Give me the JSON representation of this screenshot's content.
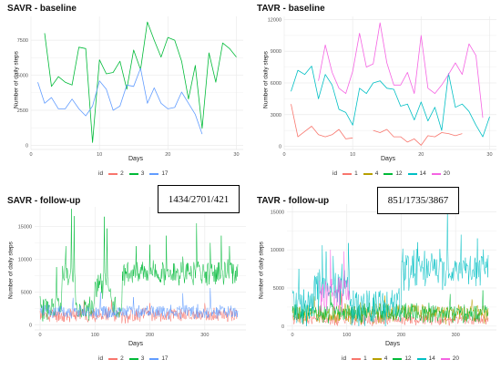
{
  "colors": {
    "red": "#F8766D",
    "green": "#00BA38",
    "blue": "#619CFF",
    "olive": "#B79F00",
    "teal": "#00BFC4",
    "pink": "#F564E3",
    "grid": "#ebebeb",
    "axis": "#d9d9d9"
  },
  "chart_data": [
    {
      "id": "savr-baseline",
      "type": "line",
      "title": "SAVR - baseline",
      "xlabel": "Days",
      "ylabel": "Number of daily steps",
      "xlim": [
        0,
        31
      ],
      "ylim": [
        -300,
        9200
      ],
      "xticks": [
        0,
        10,
        20,
        30
      ],
      "yticks": [
        0,
        2500,
        5000,
        7500
      ],
      "legend_title": "id",
      "series": [
        {
          "name": "2",
          "color": "#F8766D",
          "x": [],
          "y": []
        },
        {
          "name": "3",
          "color": "#00BA38",
          "x": [
            2,
            3,
            4,
            5,
            6,
            7,
            8,
            9,
            10,
            11,
            12,
            13,
            14,
            15,
            16,
            17,
            18,
            19,
            20,
            21,
            22,
            23,
            24,
            25,
            26,
            27,
            28,
            29,
            30
          ],
          "y": [
            8000,
            4200,
            4900,
            4500,
            4300,
            7000,
            6900,
            200,
            6100,
            5100,
            5200,
            6000,
            4000,
            6800,
            5400,
            8800,
            7500,
            6300,
            7700,
            7500,
            6000,
            3300,
            5700,
            1200,
            6600,
            4500,
            7300,
            6900,
            6300
          ]
        },
        {
          "name": "17",
          "color": "#619CFF",
          "x": [
            1,
            2,
            3,
            4,
            5,
            6,
            7,
            8,
            9,
            10,
            11,
            12,
            13,
            14,
            15,
            16,
            17,
            18,
            19,
            20,
            21,
            22,
            23,
            24,
            25
          ],
          "y": [
            4500,
            3000,
            3400,
            2600,
            2600,
            3300,
            2600,
            2100,
            2800,
            4600,
            4000,
            2500,
            2800,
            4300,
            4200,
            5500,
            3000,
            4100,
            3000,
            2600,
            2700,
            3800,
            3000,
            2200,
            800
          ]
        }
      ]
    },
    {
      "id": "tavr-baseline",
      "type": "line",
      "title": "TAVR - baseline",
      "xlabel": "Days",
      "ylabel": "Number of daily steps",
      "xlim": [
        0,
        31
      ],
      "ylim": [
        -300,
        12300
      ],
      "xticks": [
        0,
        10,
        20,
        30
      ],
      "yticks": [
        0,
        3000,
        6000,
        9000,
        12000
      ],
      "legend_title": "id",
      "series": [
        {
          "name": "1",
          "color": "#F8766D",
          "x": [
            1,
            2,
            3,
            4,
            5,
            6,
            7,
            8,
            9,
            10,
            13,
            14,
            15,
            16,
            17,
            18,
            19,
            20,
            21,
            22,
            23,
            24,
            25,
            26
          ],
          "y": [
            4000,
            900,
            1400,
            1900,
            1100,
            900,
            1100,
            1600,
            700,
            800,
            1500,
            1300,
            1600,
            900,
            900,
            400,
            700,
            100,
            1000,
            900,
            1300,
            1200,
            1000,
            1200
          ]
        },
        {
          "name": "4",
          "color": "#B79F00",
          "x": [],
          "y": []
        },
        {
          "name": "12",
          "color": "#00BA38",
          "x": [],
          "y": []
        },
        {
          "name": "14",
          "color": "#00BFC4",
          "x": [
            1,
            2,
            3,
            4,
            5,
            6,
            7,
            8,
            9,
            10,
            11,
            12,
            13,
            14,
            15,
            16,
            17,
            18,
            19,
            20,
            21,
            22,
            23,
            24,
            25,
            26,
            27,
            28,
            29,
            30
          ],
          "y": [
            5200,
            7200,
            6800,
            7600,
            4500,
            6800,
            5800,
            3500,
            3200,
            2000,
            5500,
            5000,
            6000,
            6200,
            5500,
            5400,
            3800,
            4000,
            2500,
            4200,
            2400,
            3700,
            1500,
            6900,
            3700,
            4000,
            3300,
            2000,
            900,
            2800
          ]
        },
        {
          "name": "20",
          "color": "#F564E3",
          "x": [
            5,
            6,
            7,
            8,
            9,
            10,
            11,
            12,
            13,
            14,
            15,
            16,
            17,
            18,
            19,
            20,
            21,
            22,
            23,
            24,
            25,
            26,
            27,
            28,
            29
          ],
          "y": [
            6200,
            9600,
            7000,
            5500,
            5000,
            7100,
            10700,
            7500,
            7800,
            11700,
            7900,
            5800,
            5800,
            7000,
            5000,
            10500,
            5500,
            5000,
            5800,
            6800,
            7900,
            6800,
            9700,
            8600,
            2700
          ]
        }
      ]
    },
    {
      "id": "savr-followup",
      "type": "line",
      "title": "SAVR - follow-up",
      "annotation": "1434/2701/421",
      "xlabel": "Days",
      "ylabel": "Number of daily steps",
      "xlim": [
        -10,
        375
      ],
      "ylim": [
        -800,
        18000
      ],
      "xticks": [
        0,
        100,
        200,
        300
      ],
      "yticks": [
        0,
        5000,
        10000,
        15000
      ],
      "legend_title": "id",
      "series": [
        {
          "name": "2",
          "color": "#F8766D",
          "base": 1434,
          "spread": 1300,
          "seed": 11,
          "xmax": 360,
          "spikes": [
            [
              80,
              3600
            ],
            [
              130,
              3800
            ],
            [
              200,
              3300
            ],
            [
              300,
              3300
            ]
          ]
        },
        {
          "name": "3",
          "color": "#00BA38",
          "base": 2701,
          "spread": 2300,
          "seed": 23,
          "xmax": 360,
          "spikes": [
            [
              30,
              8800
            ],
            [
              47,
              12000
            ],
            [
              57,
              17700
            ],
            [
              62,
              16600
            ],
            [
              117,
              16500
            ],
            [
              122,
              14700
            ],
            [
              175,
              12000
            ],
            [
              200,
              12200
            ],
            [
              230,
              13600
            ],
            [
              260,
              10400
            ],
            [
              285,
              15500
            ],
            [
              310,
              12500
            ],
            [
              330,
              13600
            ],
            [
              345,
              12000
            ]
          ],
          "segments": [
            [
              0,
              1500,
              2500
            ],
            [
              40,
              60,
              7500
            ],
            [
              60,
              100,
              2500
            ],
            [
              100,
              130,
              6000
            ],
            [
              130,
              150,
              2500
            ],
            [
              150,
              365,
              8000
            ]
          ]
        },
        {
          "name": "17",
          "color": "#619CFF",
          "base": 2000,
          "spread": 1300,
          "seed": 37,
          "xmax": 360,
          "spikes": [
            [
              60,
              4100
            ],
            [
              110,
              5000
            ],
            [
              170,
              4200
            ],
            [
              260,
              4800
            ],
            [
              310,
              5600
            ]
          ]
        }
      ]
    },
    {
      "id": "tavr-followup",
      "type": "line",
      "title": "TAVR - follow-up",
      "annotation": "851/1735/3867",
      "xlabel": "Days",
      "ylabel": "Number of daily steps",
      "xlim": [
        -10,
        375
      ],
      "ylim": [
        -500,
        16000
      ],
      "xticks": [
        0,
        100,
        200,
        300
      ],
      "yticks": [
        0,
        5000,
        10000,
        15000
      ],
      "legend_title": "id",
      "series": [
        {
          "name": "1",
          "color": "#F8766D",
          "base": 851,
          "spread": 900,
          "seed": 5,
          "xmax": 360,
          "spikes": [
            [
              50,
              2600
            ],
            [
              120,
              2300
            ],
            [
              260,
              2500
            ]
          ]
        },
        {
          "name": "4",
          "color": "#B79F00",
          "base": 1700,
          "spread": 1500,
          "seed": 13,
          "xmax": 360,
          "spikes": [
            [
              40,
              3900
            ],
            [
              90,
              4600
            ],
            [
              170,
              4000
            ],
            [
              330,
              3500
            ]
          ]
        },
        {
          "name": "12",
          "color": "#00BA38",
          "base": 1735,
          "spread": 1500,
          "seed": 19,
          "xmax": 360,
          "spikes": [
            [
              70,
              4600
            ],
            [
              150,
              4000
            ],
            [
              290,
              4200
            ],
            [
              350,
              4700
            ]
          ]
        },
        {
          "name": "14",
          "color": "#00BFC4",
          "base": 3867,
          "spread": 3000,
          "seed": 29,
          "xmax": 360,
          "spikes": [
            [
              12,
              7500
            ],
            [
              55,
              10600
            ],
            [
              62,
              9800
            ],
            [
              75,
              9200
            ],
            [
              103,
              10900
            ],
            [
              230,
              11000
            ],
            [
              285,
              15700
            ],
            [
              310,
              12000
            ],
            [
              340,
              11500
            ]
          ],
          "segments": [
            [
              0,
              40,
              2500
            ],
            [
              40,
              90,
              5000
            ],
            [
              90,
              105,
              6000
            ],
            [
              105,
              200,
              2600
            ],
            [
              200,
              365,
              7500
            ]
          ]
        },
        {
          "name": "20",
          "color": "#F564E3",
          "base": 4000,
          "spread": 3500,
          "seed": 41,
          "xmin": 50,
          "xmax": 105,
          "spikes": [
            [
              70,
              10000
            ],
            [
              95,
              9800
            ]
          ]
        }
      ]
    }
  ]
}
